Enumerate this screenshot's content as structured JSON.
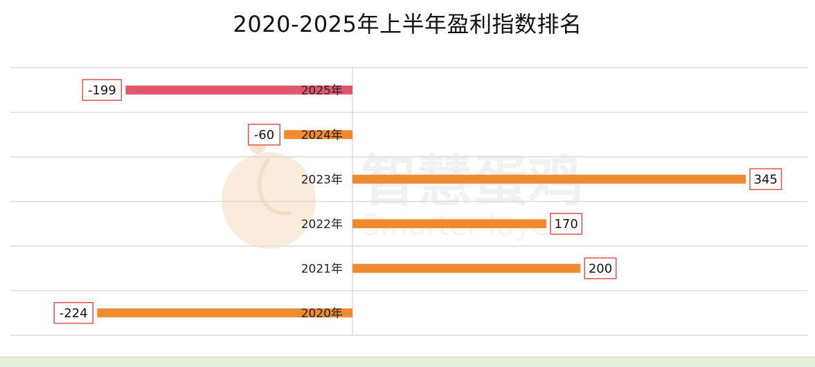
{
  "chart_data": {
    "type": "bar",
    "orientation": "horizontal",
    "title": "2020-2025年上半年盈利指数排名",
    "categories": [
      "2025年",
      "2024年",
      "2023年",
      "2022年",
      "2021年",
      "2020年"
    ],
    "values": [
      -199,
      -60,
      345,
      170,
      200,
      -224
    ],
    "data_labels": [
      "-199",
      "-60",
      "345",
      "170",
      "200",
      "-224"
    ],
    "xlim": [
      -300,
      375
    ],
    "grid": true,
    "legend": "none",
    "colors": {
      "highlight": "#e0566b",
      "default": "#ef8a2e",
      "label_border": "#d9534f",
      "grid": "#dcdcdc",
      "axis": "#cccccc"
    },
    "highlight_category": "2025年"
  },
  "watermark": {
    "text_cn": "智慧蛋鸡",
    "text_en": "Smarter layer"
  }
}
